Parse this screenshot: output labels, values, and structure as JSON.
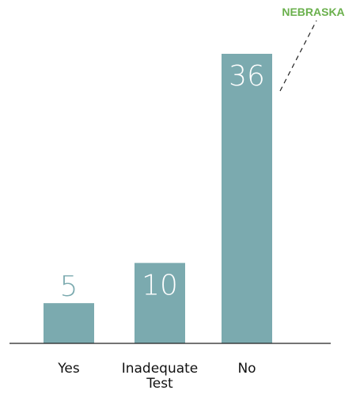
{
  "colors": {
    "bar": "#7baaaf",
    "bar_value_inside": "#ffffff",
    "bar_value_outside": "#7baaaf",
    "axis": "#222222",
    "annotation": "#6ab04c"
  },
  "annotation": {
    "text": "NEBRASKA"
  },
  "chart_data": {
    "type": "bar",
    "title": "",
    "xlabel": "",
    "ylabel": "",
    "categories": [
      [
        "Yes"
      ],
      [
        "Inadequate",
        "Test"
      ],
      [
        "No"
      ]
    ],
    "values": [
      5,
      10,
      36
    ],
    "ylim": [
      0,
      36
    ],
    "grid": false,
    "legend": "none",
    "annotations": [
      {
        "text": "NEBRASKA",
        "target_category": "No",
        "style": "dashed-leader"
      }
    ]
  }
}
